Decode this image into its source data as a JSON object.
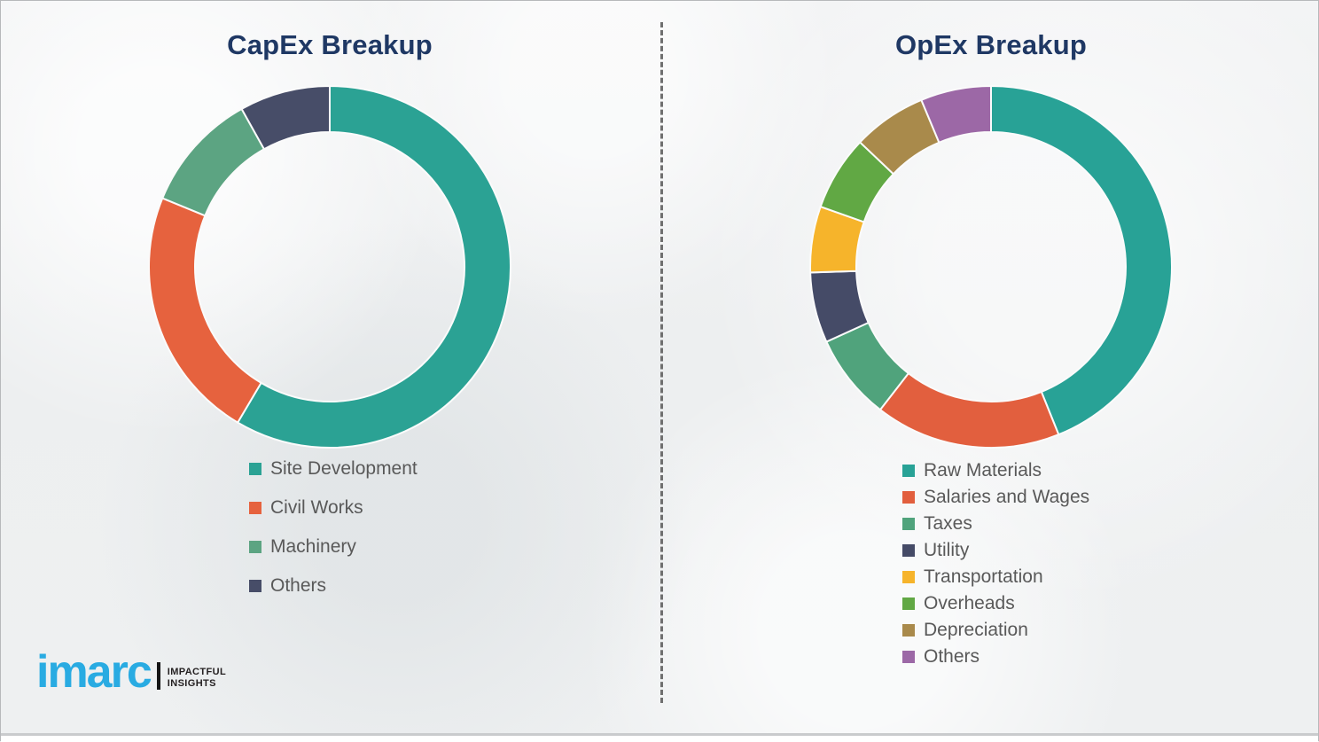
{
  "chart_data": [
    {
      "id": "capex",
      "type": "pie",
      "subtype": "donut",
      "title": "CapEx Breakup",
      "labels": [
        "Site Development",
        "Civil Works",
        "Machinery",
        "Others"
      ],
      "values": [
        58.5,
        22.7,
        10.7,
        8.1
      ],
      "values_unit": "percent_estimated_from_arc_angles",
      "colors": [
        "#2BA294",
        "#E6623E",
        "#5CA482",
        "#474D68"
      ],
      "legend_position": "below-chart-left",
      "start_angle_deg": 0,
      "direction": "clockwise",
      "data_labels_shown": false
    },
    {
      "id": "opex",
      "type": "pie",
      "subtype": "donut",
      "title": "OpEx Breakup",
      "labels": [
        "Raw Materials",
        "Salaries and Wages",
        "Taxes",
        "Utility",
        "Transportation",
        "Overheads",
        "Depreciation",
        "Others"
      ],
      "values": [
        43.9,
        16.6,
        7.7,
        6.3,
        5.9,
        6.7,
        6.6,
        6.3
      ],
      "values_unit": "percent_estimated_from_arc_angles",
      "colors": [
        "#28A296",
        "#E25F3E",
        "#50A37C",
        "#454B67",
        "#F6B42B",
        "#61A844",
        "#A98A4B",
        "#9C68A6"
      ],
      "legend_position": "below-chart-left",
      "start_angle_deg": 0,
      "direction": "clockwise",
      "data_labels_shown": false
    }
  ],
  "styles": {
    "title_color": "#1F3864",
    "legend_text_color": "#595959",
    "segment_separator_color": "#FBFBFB"
  },
  "logo": {
    "wordmark": "imarc",
    "wordmark_color": "#29ABE2",
    "tagline_line1": "IMPACTFUL",
    "tagline_line2": "INSIGHTS"
  }
}
